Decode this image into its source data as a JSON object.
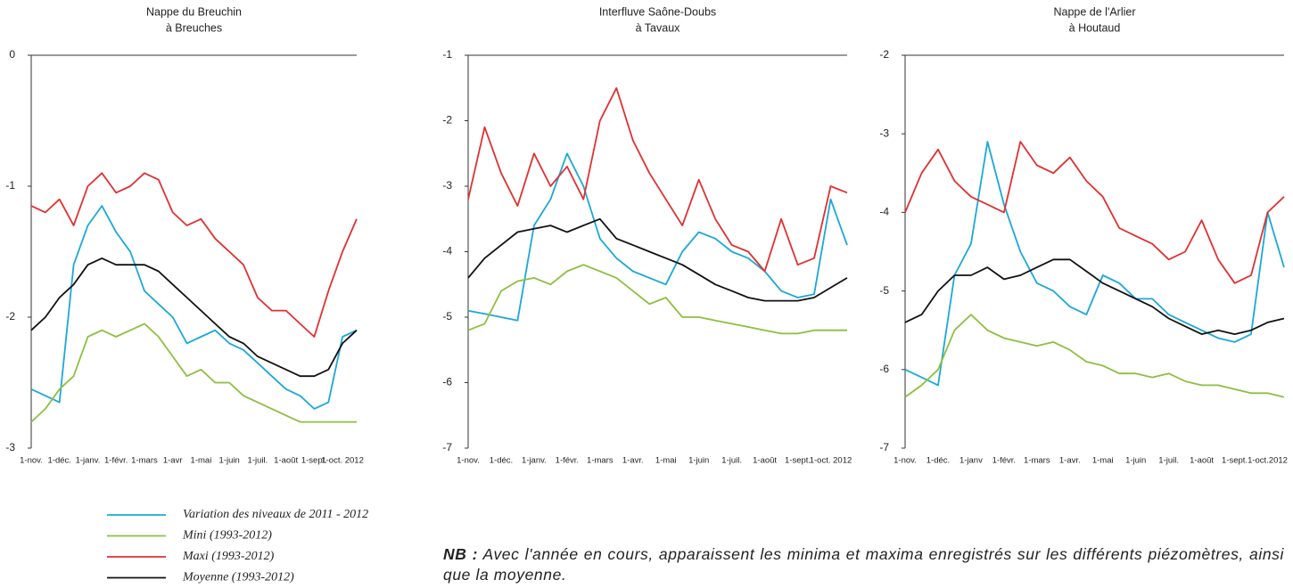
{
  "chart_data": [
    {
      "type": "line",
      "title": [
        "Nappe du Breuchin",
        "à Breuches"
      ],
      "categories": [
        "1-nov.",
        null,
        "1-déc.",
        null,
        "1-janv.",
        null,
        "1-févr.",
        null,
        "1-mars",
        null,
        "1-avr",
        null,
        "1-mai",
        null,
        "1-juin",
        null,
        "1-juil.",
        null,
        "1-août",
        null,
        "1-sept.",
        null,
        "1-oct. 2012",
        null
      ],
      "ylim": [
        -3,
        0
      ],
      "yticks": [
        0,
        -1,
        -2,
        -3
      ],
      "series": [
        {
          "name": "Variation des niveaux de 2011 - 2012",
          "color": "#1ba8d8",
          "values": [
            -2.55,
            -2.6,
            -2.65,
            -1.6,
            -1.3,
            -1.15,
            -1.35,
            -1.5,
            -1.8,
            -1.9,
            -2.0,
            -2.2,
            -2.15,
            -2.1,
            -2.2,
            -2.25,
            -2.35,
            -2.45,
            -2.55,
            -2.6,
            -2.7,
            -2.65,
            -2.15,
            -2.1
          ]
        },
        {
          "name": "Mini (1993-2012)",
          "color": "#8dbf3f",
          "values": [
            -2.8,
            -2.7,
            -2.55,
            -2.45,
            -2.15,
            -2.1,
            -2.15,
            -2.1,
            -2.05,
            -2.15,
            -2.3,
            -2.45,
            -2.4,
            -2.5,
            -2.5,
            -2.6,
            -2.65,
            -2.7,
            -2.75,
            -2.8,
            -2.8,
            -2.8,
            -2.8,
            -2.8
          ]
        },
        {
          "name": "Maxi (1993-2012)",
          "color": "#e03030",
          "values": [
            -1.15,
            -1.2,
            -1.1,
            -1.3,
            -1.0,
            -0.9,
            -1.05,
            -1.0,
            -0.9,
            -0.95,
            -1.2,
            -1.3,
            -1.25,
            -1.4,
            -1.5,
            -1.6,
            -1.85,
            -1.95,
            -1.95,
            -2.05,
            -2.15,
            -1.8,
            -1.5,
            -1.25
          ]
        },
        {
          "name": "Moyenne (1993-2012)",
          "color": "#111111",
          "values": [
            -2.1,
            -2.0,
            -1.85,
            -1.75,
            -1.6,
            -1.55,
            -1.6,
            -1.6,
            -1.6,
            -1.65,
            -1.75,
            -1.85,
            -1.95,
            -2.05,
            -2.15,
            -2.2,
            -2.3,
            -2.35,
            -2.4,
            -2.45,
            -2.45,
            -2.4,
            -2.2,
            -2.1
          ]
        }
      ]
    },
    {
      "type": "line",
      "title": [
        "Interfluve Saône-Doubs",
        "à Tavaux"
      ],
      "categories": [
        "1-nov.",
        null,
        "1-déc.",
        null,
        "1-janv.",
        null,
        "1-févr.",
        null,
        "1-mars",
        null,
        "1-avr.",
        null,
        "1-mai",
        null,
        "1-juin",
        null,
        "1-juil.",
        null,
        "1-août",
        null,
        "1-sept.",
        null,
        "1-oct. 2012",
        null
      ],
      "ylim": [
        -7,
        -1
      ],
      "yticks": [
        -1,
        -2,
        -3,
        -4,
        -5,
        -6,
        -7
      ],
      "series": [
        {
          "color": "#1ba8d8",
          "values": [
            -4.9,
            -4.95,
            -5.0,
            -5.05,
            -3.6,
            -3.2,
            -2.5,
            -3.0,
            -3.8,
            -4.1,
            -4.3,
            -4.4,
            -4.5,
            -4.0,
            -3.7,
            -3.8,
            -4.0,
            -4.1,
            -4.3,
            -4.6,
            -4.7,
            -4.65,
            -3.2,
            -3.9
          ]
        },
        {
          "color": "#8dbf3f",
          "values": [
            -5.2,
            -5.1,
            -4.6,
            -4.45,
            -4.4,
            -4.5,
            -4.3,
            -4.2,
            -4.3,
            -4.4,
            -4.6,
            -4.8,
            -4.7,
            -5.0,
            -5.0,
            -5.05,
            -5.1,
            -5.15,
            -5.2,
            -5.25,
            -5.25,
            -5.2,
            -5.2,
            -5.2
          ]
        },
        {
          "color": "#e03030",
          "values": [
            -3.2,
            -2.1,
            -2.8,
            -3.3,
            -2.5,
            -3.0,
            -2.7,
            -3.2,
            -2.0,
            -1.5,
            -2.3,
            -2.8,
            -3.2,
            -3.6,
            -2.9,
            -3.5,
            -3.9,
            -4.0,
            -4.3,
            -3.5,
            -4.2,
            -4.1,
            -3.0,
            -3.1
          ]
        },
        {
          "color": "#111111",
          "values": [
            -4.4,
            -4.1,
            -3.9,
            -3.7,
            -3.65,
            -3.6,
            -3.7,
            -3.6,
            -3.5,
            -3.8,
            -3.9,
            -4.0,
            -4.1,
            -4.2,
            -4.35,
            -4.5,
            -4.6,
            -4.7,
            -4.75,
            -4.75,
            -4.75,
            -4.7,
            -4.55,
            -4.4
          ]
        }
      ]
    },
    {
      "type": "line",
      "title": [
        "Nappe de l'Arlier",
        "à Houtaud"
      ],
      "categories": [
        "1-nov.",
        null,
        "1-déc.",
        null,
        "1-janv",
        null,
        "1-févr.",
        null,
        "1-mars",
        null,
        "1-avr.",
        null,
        "1-mai",
        null,
        "1-juin",
        null,
        "1-juil.",
        null,
        "1-août",
        null,
        "1-sept.",
        null,
        "1-oct.2012",
        null
      ],
      "ylim": [
        -7,
        -2
      ],
      "yticks": [
        -2,
        -3,
        -4,
        -5,
        -6,
        -7
      ],
      "series": [
        {
          "color": "#1ba8d8",
          "values": [
            -6.0,
            -6.1,
            -6.2,
            -4.8,
            -4.4,
            -3.1,
            -3.9,
            -4.5,
            -4.9,
            -5.0,
            -5.2,
            -5.3,
            -4.8,
            -4.9,
            -5.1,
            -5.1,
            -5.3,
            -5.4,
            -5.5,
            -5.6,
            -5.65,
            -5.55,
            -4.0,
            -4.7
          ]
        },
        {
          "color": "#8dbf3f",
          "values": [
            -6.35,
            -6.2,
            -6.0,
            -5.5,
            -5.3,
            -5.5,
            -5.6,
            -5.65,
            -5.7,
            -5.65,
            -5.75,
            -5.9,
            -5.95,
            -6.05,
            -6.05,
            -6.1,
            -6.05,
            -6.15,
            -6.2,
            -6.2,
            -6.25,
            -6.3,
            -6.3,
            -6.35
          ]
        },
        {
          "color": "#e03030",
          "values": [
            -4.0,
            -3.5,
            -3.2,
            -3.6,
            -3.8,
            -3.9,
            -4.0,
            -3.1,
            -3.4,
            -3.5,
            -3.3,
            -3.6,
            -3.8,
            -4.2,
            -4.3,
            -4.4,
            -4.6,
            -4.5,
            -4.1,
            -4.6,
            -4.9,
            -4.8,
            -4.0,
            -3.8
          ]
        },
        {
          "color": "#111111",
          "values": [
            -5.4,
            -5.3,
            -5.0,
            -4.8,
            -4.8,
            -4.7,
            -4.85,
            -4.8,
            -4.7,
            -4.6,
            -4.6,
            -4.75,
            -4.9,
            -5.0,
            -5.1,
            -5.2,
            -5.35,
            -5.45,
            -5.55,
            -5.5,
            -5.55,
            -5.5,
            -5.4,
            -5.35
          ]
        }
      ]
    }
  ],
  "note": {
    "label": "NB :",
    "text": "Avec l'année en cours, apparaissent les minima et maxima enregistrés sur les différents piézomètres, ainsi que la moyenne."
  }
}
